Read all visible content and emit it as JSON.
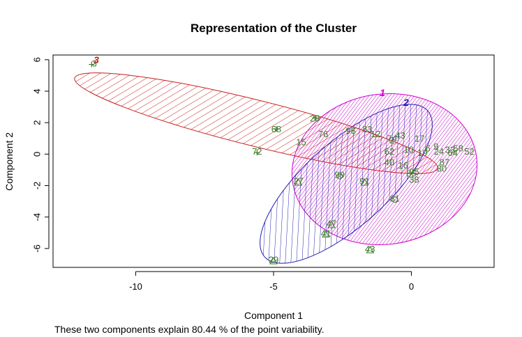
{
  "chart_data": {
    "type": "scatter",
    "title": "Representation of the Cluster",
    "xlabel": "Component 1",
    "ylabel": "Component 2",
    "subtitle": "These two components explain 80.44 % of the point variability.",
    "xlim": [
      -13,
      3
    ],
    "ylim": [
      -7.2,
      6.3
    ],
    "xticks": [
      -10,
      -5,
      0
    ],
    "yticks": [
      -6,
      -4,
      -2,
      0,
      2,
      4,
      6
    ],
    "grid": false,
    "clusters": [
      {
        "name": "1",
        "color": "#cc00cc",
        "center": [
          0.8,
          0.0
        ],
        "label_at": [
          -1.1,
          3.8
        ],
        "hatch": "dense"
      },
      {
        "name": "2",
        "color": "#1c1cb0",
        "center": [
          -2.0,
          -2.2
        ],
        "label_at": [
          -0.2,
          3.1
        ],
        "hatch": "sparse"
      },
      {
        "name": "3",
        "color": "#c81e1e",
        "center": [
          -5.5,
          2.3
        ],
        "label_at": [
          -11.5,
          5.8
        ],
        "hatch": "sparse"
      }
    ],
    "points": [
      {
        "label": "68",
        "x": -4.9,
        "y": 1.6
      },
      {
        "label": "72",
        "x": -5.6,
        "y": 0.2
      },
      {
        "label": "28",
        "x": -3.5,
        "y": 2.3
      },
      {
        "label": "76",
        "x": -3.2,
        "y": 1.3
      },
      {
        "label": "15",
        "x": -4.0,
        "y": 0.8
      },
      {
        "label": "27",
        "x": -4.1,
        "y": -1.7
      },
      {
        "label": "99",
        "x": -2.6,
        "y": -1.3
      },
      {
        "label": "91",
        "x": -1.7,
        "y": -1.7
      },
      {
        "label": "47",
        "x": -2.9,
        "y": -4.4
      },
      {
        "label": "41",
        "x": -3.1,
        "y": -5.0
      },
      {
        "label": "43",
        "x": -1.5,
        "y": -6.0
      },
      {
        "label": "29",
        "x": -5.0,
        "y": -6.7
      },
      {
        "label": "81",
        "x": -0.6,
        "y": -2.8
      },
      {
        "label": "96",
        "x": -2.2,
        "y": 1.5
      },
      {
        "label": "83",
        "x": -1.6,
        "y": 1.6
      },
      {
        "label": "12",
        "x": -1.3,
        "y": 1.3
      },
      {
        "label": "74",
        "x": -0.7,
        "y": 1.0
      },
      {
        "label": "43",
        "x": -0.4,
        "y": 1.2
      },
      {
        "label": "62",
        "x": -0.8,
        "y": 0.2
      },
      {
        "label": "40",
        "x": -0.8,
        "y": -0.5
      },
      {
        "label": "16",
        "x": -0.3,
        "y": -0.7
      },
      {
        "label": "95",
        "x": 0.1,
        "y": -1.1
      },
      {
        "label": "38",
        "x": 0.1,
        "y": -1.6
      },
      {
        "label": "87",
        "x": 1.2,
        "y": -0.5
      },
      {
        "label": "80",
        "x": 1.1,
        "y": -0.9
      },
      {
        "label": "17",
        "x": 0.3,
        "y": 1.0
      },
      {
        "label": "10",
        "x": -0.1,
        "y": 0.3
      },
      {
        "label": "52",
        "x": 2.1,
        "y": 0.2
      },
      {
        "label": "2",
        "x": -0.7,
        "y": 0.9
      },
      {
        "label": "85",
        "x": 0.0,
        "y": -1.2
      },
      {
        "label": "6",
        "x": 0.6,
        "y": 0.4
      },
      {
        "label": "24",
        "x": 1.0,
        "y": 0.2
      },
      {
        "label": "33",
        "x": 1.4,
        "y": 0.3
      },
      {
        "label": "58",
        "x": 1.7,
        "y": 0.4
      },
      {
        "label": "9",
        "x": 0.9,
        "y": 0.5
      },
      {
        "label": "64",
        "x": 1.5,
        "y": 0.1
      },
      {
        "label": "19",
        "x": 0.4,
        "y": 0.1
      },
      {
        "label": "3",
        "x": -11.5,
        "y": 5.8
      }
    ],
    "markers": [
      {
        "x": -11.6,
        "y": 5.7,
        "shape": "plus"
      },
      {
        "x": -4.9,
        "y": 1.6,
        "shape": "plus"
      },
      {
        "x": -5.6,
        "y": 0.1,
        "shape": "plus"
      },
      {
        "x": -3.5,
        "y": 2.3,
        "shape": "plus"
      },
      {
        "x": -5.0,
        "y": -6.8,
        "shape": "triangle"
      },
      {
        "x": -3.1,
        "y": -5.1,
        "shape": "triangle"
      },
      {
        "x": -2.9,
        "y": -4.5,
        "shape": "triangle"
      },
      {
        "x": -1.5,
        "y": -6.1,
        "shape": "triangle"
      },
      {
        "x": -4.1,
        "y": -1.8,
        "shape": "triangle"
      },
      {
        "x": -1.7,
        "y": -1.8,
        "shape": "triangle"
      },
      {
        "x": -0.6,
        "y": -2.9,
        "shape": "circle"
      },
      {
        "x": -2.6,
        "y": -1.4,
        "shape": "circle"
      }
    ]
  }
}
